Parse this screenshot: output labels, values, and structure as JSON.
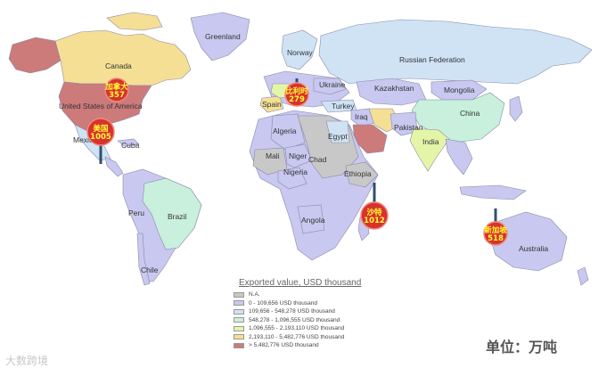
{
  "map": {
    "colors": {
      "ocean": "#ffffff",
      "na": "#c8c8c8",
      "c1": "#c8c8f0",
      "c2": "#cfe3f5",
      "c3": "#c8f0dc",
      "c4": "#e4f5a8",
      "c5": "#f5df95",
      "c6": "#cc7a7a",
      "marker": "#d8322e"
    },
    "countries": [
      {
        "key": "greenland",
        "label": "Greenland",
        "cls": "c1"
      },
      {
        "key": "canada",
        "label": "Canada",
        "cls": "c5"
      },
      {
        "key": "usa",
        "label": "United States of America",
        "cls": "c6"
      },
      {
        "key": "mexico",
        "label": "Mexico",
        "cls": "c2"
      },
      {
        "key": "cuba",
        "label": "Cuba",
        "cls": "c1"
      },
      {
        "key": "peru",
        "label": "Peru",
        "cls": "c1"
      },
      {
        "key": "brazil",
        "label": "Brazil",
        "cls": "c3"
      },
      {
        "key": "chile",
        "label": "Chile",
        "cls": "c1"
      },
      {
        "key": "norway",
        "label": "Norway",
        "cls": "c2"
      },
      {
        "key": "spain",
        "label": "Spain",
        "cls": "c5"
      },
      {
        "key": "ukraine",
        "label": "Ukraine",
        "cls": "c1"
      },
      {
        "key": "turkey",
        "label": "Turkey",
        "cls": "c2"
      },
      {
        "key": "iraq",
        "label": "Iraq",
        "cls": "c1"
      },
      {
        "key": "algeria",
        "label": "Algeria",
        "cls": "c1"
      },
      {
        "key": "egypt",
        "label": "Egypt",
        "cls": "c2"
      },
      {
        "key": "mali",
        "label": "Mali",
        "cls": "na"
      },
      {
        "key": "niger",
        "label": "Niger",
        "cls": "c1"
      },
      {
        "key": "chad",
        "label": "Chad",
        "cls": "na"
      },
      {
        "key": "nigeria",
        "label": "Nigeria",
        "cls": "c1"
      },
      {
        "key": "ethiopia",
        "label": "Ethiopia",
        "cls": "na"
      },
      {
        "key": "angola",
        "label": "Angola",
        "cls": "c1"
      },
      {
        "key": "russia",
        "label": "Russian Federation",
        "cls": "c2"
      },
      {
        "key": "kazakhstan",
        "label": "Kazakhstan",
        "cls": "c1"
      },
      {
        "key": "mongolia",
        "label": "Mongolia",
        "cls": "c1"
      },
      {
        "key": "china",
        "label": "China",
        "cls": "c3"
      },
      {
        "key": "pakistan",
        "label": "Pakistan",
        "cls": "c1"
      },
      {
        "key": "india",
        "label": "India",
        "cls": "c4"
      },
      {
        "key": "australia",
        "label": "Australia",
        "cls": "c1"
      }
    ],
    "markers": [
      {
        "key": "canada",
        "name": "加拿大",
        "value": "357"
      },
      {
        "key": "usa",
        "name": "美国",
        "value": "1005"
      },
      {
        "key": "belgium",
        "name": "比利时",
        "value": "279"
      },
      {
        "key": "saudi",
        "name": "沙特",
        "value": "1012"
      },
      {
        "key": "singapore",
        "name": "新加坡",
        "value": "518"
      }
    ]
  },
  "legend": {
    "title": "Exported value, USD thousand",
    "items": [
      {
        "label": "N.A.",
        "color": "#c8c8c8"
      },
      {
        "label": "0 - 109,656 USD thousand",
        "color": "#c8c8f0"
      },
      {
        "label": "109,656 - 548,278 USD thousand",
        "color": "#cfe3f5"
      },
      {
        "label": "548,278 - 1,096,555 USD thousand",
        "color": "#c8f0dc"
      },
      {
        "label": "1,096,555 - 2,193,110 USD thousand",
        "color": "#e4f5a8"
      },
      {
        "label": "2,193,110 - 5,482,776 USD thousand",
        "color": "#f5df95"
      },
      {
        "label": "> 5,482,776 USD thousand",
        "color": "#cc7a7a"
      }
    ]
  },
  "unit_note": "单位：万吨",
  "watermark": "大数跨境"
}
